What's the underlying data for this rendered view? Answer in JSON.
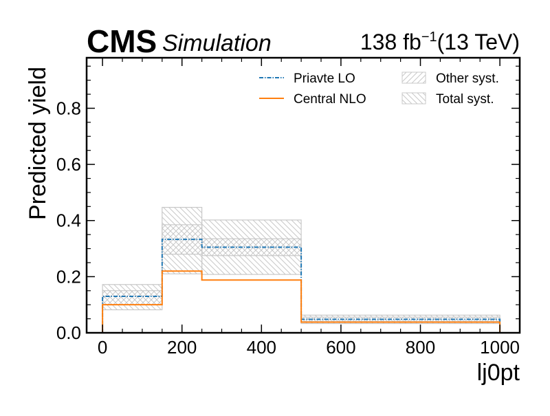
{
  "header": {
    "experiment": "CMS",
    "status": "Simulation",
    "lumi_value": "138 fb",
    "lumi_exp": "−1",
    "energy": "(13 TeV)"
  },
  "chart_data": {
    "type": "step-histogram",
    "xlabel": "lj0pt",
    "ylabel": "Predicted yield",
    "xlim": [
      -40,
      1050
    ],
    "ylim": [
      0,
      0.98
    ],
    "x_ticks": [
      0,
      200,
      400,
      600,
      800,
      1000
    ],
    "x_tick_labels": [
      "0",
      "200",
      "400",
      "600",
      "800",
      "1000"
    ],
    "y_ticks": [
      0.0,
      0.2,
      0.4,
      0.6,
      0.8
    ],
    "y_tick_labels": [
      "0.0",
      "0.2",
      "0.4",
      "0.6",
      "0.8"
    ],
    "bin_edges": [
      0,
      150,
      250,
      500,
      1000
    ],
    "series": [
      {
        "name": "Priavte LO",
        "values": [
          0.13,
          0.333,
          0.305,
          0.048
        ],
        "color": "#1f77b4",
        "style": "dashdot"
      },
      {
        "name": "Central NLO",
        "values": [
          0.1,
          0.22,
          0.188,
          0.038
        ],
        "color": "#ff7f0e",
        "style": "solid"
      }
    ],
    "bands": [
      {
        "name": "Other syst.",
        "hatch": "forward",
        "low": [
          0.1,
          0.28,
          0.275,
          0.04
        ],
        "high": [
          0.15,
          0.385,
          0.335,
          0.056
        ]
      },
      {
        "name": "Total syst.",
        "hatch": "backward",
        "low": [
          0.082,
          0.21,
          0.208,
          0.033
        ],
        "high": [
          0.172,
          0.447,
          0.402,
          0.063
        ]
      }
    ],
    "legend_position": "top-right",
    "band_color": "#c8c8c8"
  }
}
